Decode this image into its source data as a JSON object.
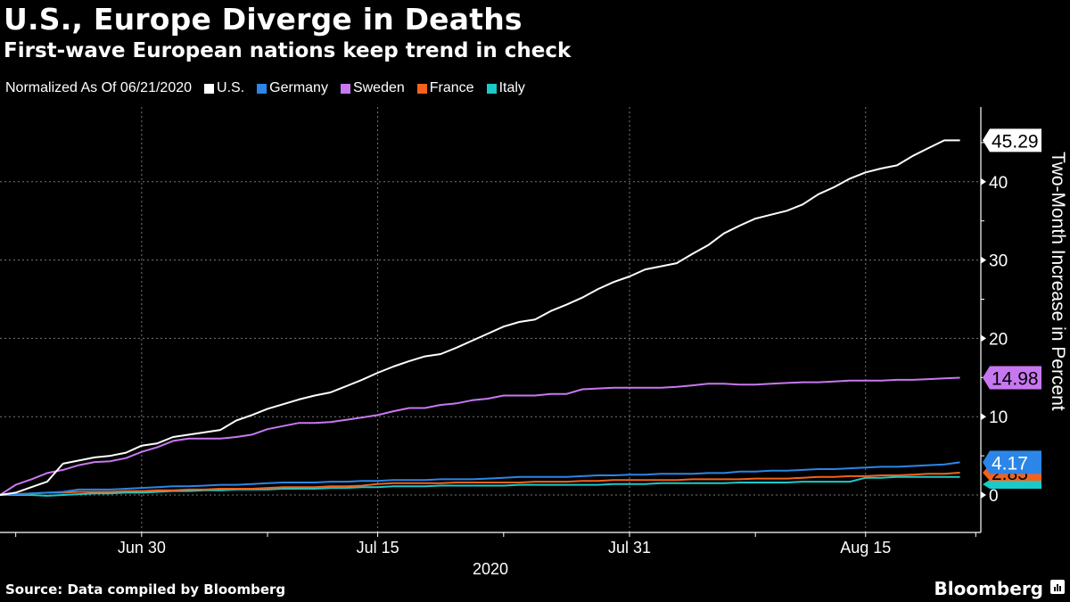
{
  "title": "U.S., Europe Diverge in Deaths",
  "subtitle": "First-wave European nations keep trend in check",
  "legend_note": "Normalized As Of 06/21/2020",
  "source": "Source: Data compiled by Bloomberg",
  "brand": "Bloomberg",
  "chart_data": {
    "type": "line",
    "title": "U.S., Europe Diverge in Deaths",
    "subtitle": "First-wave European nations keep trend in check",
    "xlabel": "2020",
    "ylabel": "Two-Month Increase in Percent",
    "x_start": "2020-06-21",
    "x_unit": "day",
    "x_range_days": [
      0,
      62
    ],
    "ylim": [
      -1.5,
      50
    ],
    "yticks": [
      0,
      10,
      20,
      30,
      40
    ],
    "xticks": [
      {
        "label": "Jun 30",
        "day": 9
      },
      {
        "label": "Jul 15",
        "day": 24
      },
      {
        "label": "Jul 31",
        "day": 40
      },
      {
        "label": "Aug 15",
        "day": 55
      }
    ],
    "minor_xticks_days": [
      1,
      17,
      32,
      48,
      62
    ],
    "grid": true,
    "legend_position": "top-left",
    "series": [
      {
        "name": "U.S.",
        "color": "#ffffff",
        "end_label": "45.29",
        "values": [
          0,
          0.3,
          1.0,
          1.7,
          4.0,
          4.4,
          4.8,
          5.0,
          5.4,
          6.3,
          6.6,
          7.4,
          7.7,
          8.0,
          8.3,
          9.5,
          10.2,
          11.0,
          11.6,
          12.2,
          12.7,
          13.1,
          13.9,
          14.7,
          15.6,
          16.4,
          17.1,
          17.7,
          18.0,
          18.8,
          19.7,
          20.6,
          21.5,
          22.1,
          22.4,
          23.5,
          24.3,
          25.2,
          26.3,
          27.2,
          27.9,
          28.8,
          29.2,
          29.6,
          30.8,
          31.9,
          33.4,
          34.4,
          35.3,
          35.8,
          36.3,
          37.1,
          38.4,
          39.3,
          40.4,
          41.2,
          41.7,
          42.1,
          43.3,
          44.3,
          45.29,
          45.29
        ]
      },
      {
        "name": "Germany",
        "color": "#2b86e8",
        "end_label": "4.17",
        "values": [
          0,
          0.1,
          0.2,
          0.3,
          0.4,
          0.7,
          0.7,
          0.7,
          0.8,
          0.9,
          1.0,
          1.1,
          1.1,
          1.2,
          1.3,
          1.3,
          1.4,
          1.5,
          1.6,
          1.6,
          1.6,
          1.7,
          1.7,
          1.8,
          1.8,
          1.9,
          1.9,
          1.9,
          2.0,
          2.0,
          2.0,
          2.1,
          2.2,
          2.3,
          2.3,
          2.3,
          2.3,
          2.4,
          2.5,
          2.5,
          2.6,
          2.6,
          2.7,
          2.7,
          2.7,
          2.8,
          2.8,
          3.0,
          3.0,
          3.1,
          3.1,
          3.2,
          3.3,
          3.3,
          3.4,
          3.5,
          3.6,
          3.6,
          3.7,
          3.8,
          3.9,
          4.17
        ]
      },
      {
        "name": "Sweden",
        "color": "#c778f0",
        "end_label": "14.98",
        "values": [
          0,
          1.3,
          2.0,
          2.8,
          3.2,
          3.8,
          4.2,
          4.3,
          4.7,
          5.5,
          6.1,
          6.9,
          7.2,
          7.2,
          7.2,
          7.4,
          7.7,
          8.4,
          8.8,
          9.2,
          9.2,
          9.3,
          9.6,
          9.9,
          10.2,
          10.7,
          11.1,
          11.1,
          11.5,
          11.7,
          12.1,
          12.3,
          12.7,
          12.7,
          12.7,
          12.9,
          12.9,
          13.5,
          13.6,
          13.7,
          13.7,
          13.7,
          13.7,
          13.8,
          14.0,
          14.2,
          14.2,
          14.1,
          14.1,
          14.2,
          14.3,
          14.4,
          14.4,
          14.5,
          14.6,
          14.6,
          14.6,
          14.7,
          14.7,
          14.8,
          14.9,
          14.98
        ]
      },
      {
        "name": "France",
        "color": "#f5621b",
        "end_label": "2.85",
        "values": [
          0,
          0.1,
          0.2,
          0.3,
          0.3,
          0.4,
          0.4,
          0.4,
          0.5,
          0.5,
          0.6,
          0.6,
          0.7,
          0.7,
          0.8,
          0.8,
          0.8,
          0.9,
          1.0,
          1.0,
          1.0,
          1.1,
          1.1,
          1.2,
          1.4,
          1.5,
          1.5,
          1.5,
          1.5,
          1.6,
          1.6,
          1.6,
          1.6,
          1.6,
          1.7,
          1.7,
          1.7,
          1.8,
          1.8,
          1.9,
          1.9,
          1.9,
          1.9,
          1.9,
          2.0,
          2.0,
          2.0,
          2.0,
          2.1,
          2.1,
          2.1,
          2.2,
          2.3,
          2.3,
          2.4,
          2.4,
          2.5,
          2.5,
          2.6,
          2.7,
          2.7,
          2.85
        ]
      },
      {
        "name": "Italy",
        "color": "#1cc9c9",
        "end_label": "",
        "values": [
          0,
          0,
          0,
          -0.1,
          0,
          0.1,
          0.2,
          0.2,
          0.3,
          0.3,
          0.4,
          0.5,
          0.5,
          0.6,
          0.6,
          0.7,
          0.7,
          0.7,
          0.8,
          0.8,
          0.8,
          0.9,
          0.9,
          1.0,
          1.0,
          1.1,
          1.1,
          1.1,
          1.2,
          1.2,
          1.2,
          1.2,
          1.2,
          1.3,
          1.3,
          1.3,
          1.3,
          1.3,
          1.3,
          1.4,
          1.4,
          1.4,
          1.5,
          1.5,
          1.5,
          1.5,
          1.5,
          1.6,
          1.6,
          1.6,
          1.6,
          1.7,
          1.7,
          1.7,
          1.7,
          2.2,
          2.2,
          2.3,
          2.3,
          2.3,
          2.3,
          2.3
        ]
      }
    ]
  }
}
